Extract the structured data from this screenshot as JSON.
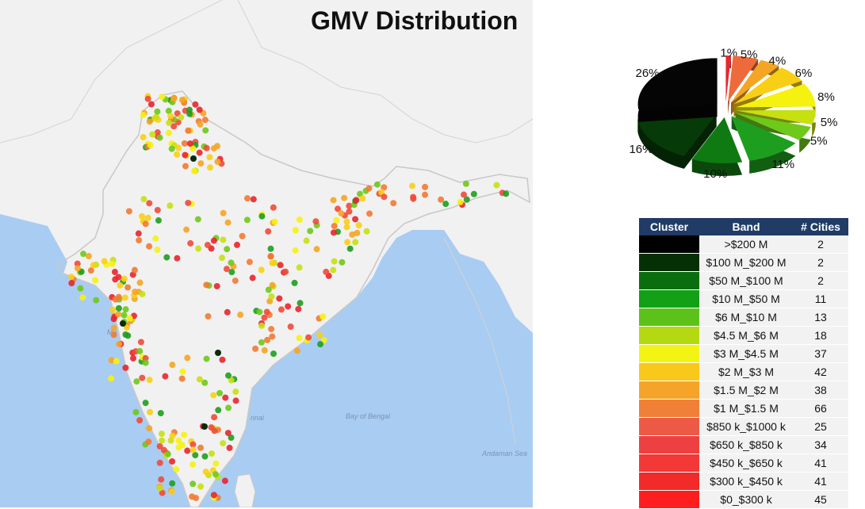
{
  "title": "GMV Distribution",
  "map_labels": {
    "bay": "Bay of Bengal",
    "andaman": "Andaman Sea",
    "city_mumbai_part": "Mu",
    "city_chennai_part": "nnai"
  },
  "colors": {
    "sea": "#a9ccf2",
    "land": "#f1f1f1",
    "border": "#c8c8c8",
    "table_header": "#1f3b66"
  },
  "chart_data": {
    "type": "pie",
    "title": "",
    "slices": [
      {
        "label": "1%",
        "value": 1,
        "color": "#e8262d"
      },
      {
        "label": "5%",
        "value": 5,
        "color": "#ef6a3a"
      },
      {
        "label": "4%",
        "value": 4,
        "color": "#f5a524"
      },
      {
        "label": "6%",
        "value": 6,
        "color": "#f9cf16"
      },
      {
        "label": "8%",
        "value": 8,
        "color": "#f6f20f"
      },
      {
        "label": "5%",
        "value": 5,
        "color": "#c6e010"
      },
      {
        "label": "5%",
        "value": 5,
        "color": "#6ec91a"
      },
      {
        "label": "11%",
        "value": 11,
        "color": "#1e9e1e"
      },
      {
        "label": "10%",
        "value": 10,
        "color": "#107a12"
      },
      {
        "label": "16%",
        "value": 16,
        "color": "#063a08"
      },
      {
        "label": "26%",
        "value": 26,
        "color": "#050505"
      }
    ]
  },
  "table": {
    "headers": [
      "Cluster",
      "Band",
      "# Cities"
    ],
    "rows": [
      {
        "band": ">$200 M",
        "cities": "2",
        "color": "#000000"
      },
      {
        "band": "$100 M_$200 M",
        "cities": "2",
        "color": "#053005"
      },
      {
        "band": "$50 M_$100 M",
        "cities": "2",
        "color": "#0a6e0f"
      },
      {
        "band": "$10 M_$50 M",
        "cities": "11",
        "color": "#12a016"
      },
      {
        "band": "$6 M_$10 M",
        "cities": "13",
        "color": "#5cc21a"
      },
      {
        "band": "$4.5 M_$6 M",
        "cities": "18",
        "color": "#b4d911"
      },
      {
        "band": "$3 M_$4.5 M",
        "cities": "37",
        "color": "#f3f414"
      },
      {
        "band": "$2 M_$3 M",
        "cities": "42",
        "color": "#f8c81a"
      },
      {
        "band": "$1.5 M_$2 M",
        "cities": "38",
        "color": "#f5a42a"
      },
      {
        "band": "$1 M_$1.5 M",
        "cities": "66",
        "color": "#f08038"
      },
      {
        "band": "$850 k_$1000 k",
        "cities": "25",
        "color": "#ec5a46"
      },
      {
        "band": "$650 k_$850 k",
        "cities": "34",
        "color": "#ee4040"
      },
      {
        "band": "$450 k_$650 k",
        "cities": "41",
        "color": "#f33838"
      },
      {
        "band": "$300 k_$450 k",
        "cities": "41",
        "color": "#f32a2a"
      },
      {
        "band": "$0_$300 k",
        "cities": "45",
        "color": "#ff1e1e"
      }
    ]
  }
}
